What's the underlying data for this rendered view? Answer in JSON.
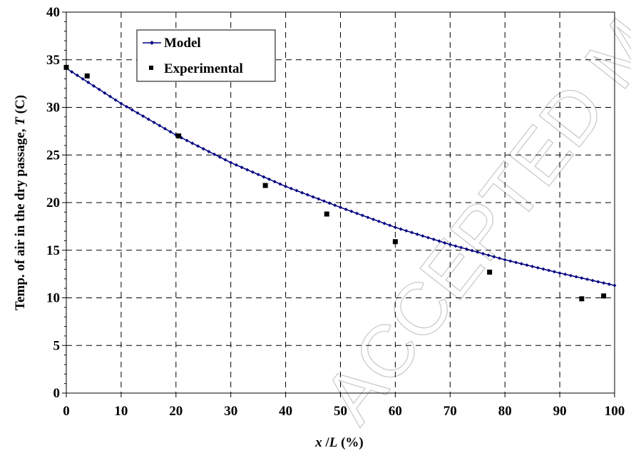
{
  "watermark": "ACCEPTED MANUSCRIPT",
  "chart_data": {
    "type": "line",
    "xlabel_parts": [
      "x",
      " /",
      "L",
      " (%)"
    ],
    "ylabel_parts": [
      "Temp. of air in the dry passage, ",
      "T",
      " (C)"
    ],
    "xlim": [
      0,
      100
    ],
    "ylim": [
      0,
      40
    ],
    "x_ticks": [
      0,
      10,
      20,
      30,
      40,
      50,
      60,
      70,
      80,
      90,
      100
    ],
    "y_ticks": [
      0,
      5,
      10,
      15,
      20,
      25,
      30,
      35,
      40
    ],
    "grid": true,
    "legend_position": "top-left",
    "series": [
      {
        "name": "Model",
        "kind": "line-with-markers",
        "color": "#000080",
        "x": [
          0,
          10,
          20,
          30,
          40,
          50,
          60,
          70,
          80,
          90,
          100
        ],
        "y": [
          34.1,
          30.4,
          27.1,
          24.2,
          21.7,
          19.5,
          17.4,
          15.6,
          14.0,
          12.6,
          11.3
        ]
      },
      {
        "name": "Experimental",
        "kind": "scatter",
        "color": "#000000",
        "x": [
          0,
          3.8,
          20.5,
          36.3,
          47.5,
          60,
          77.2,
          94,
          98
        ],
        "y": [
          34.2,
          33.3,
          27.0,
          21.8,
          18.8,
          15.9,
          12.7,
          9.9,
          10.2
        ]
      }
    ]
  }
}
